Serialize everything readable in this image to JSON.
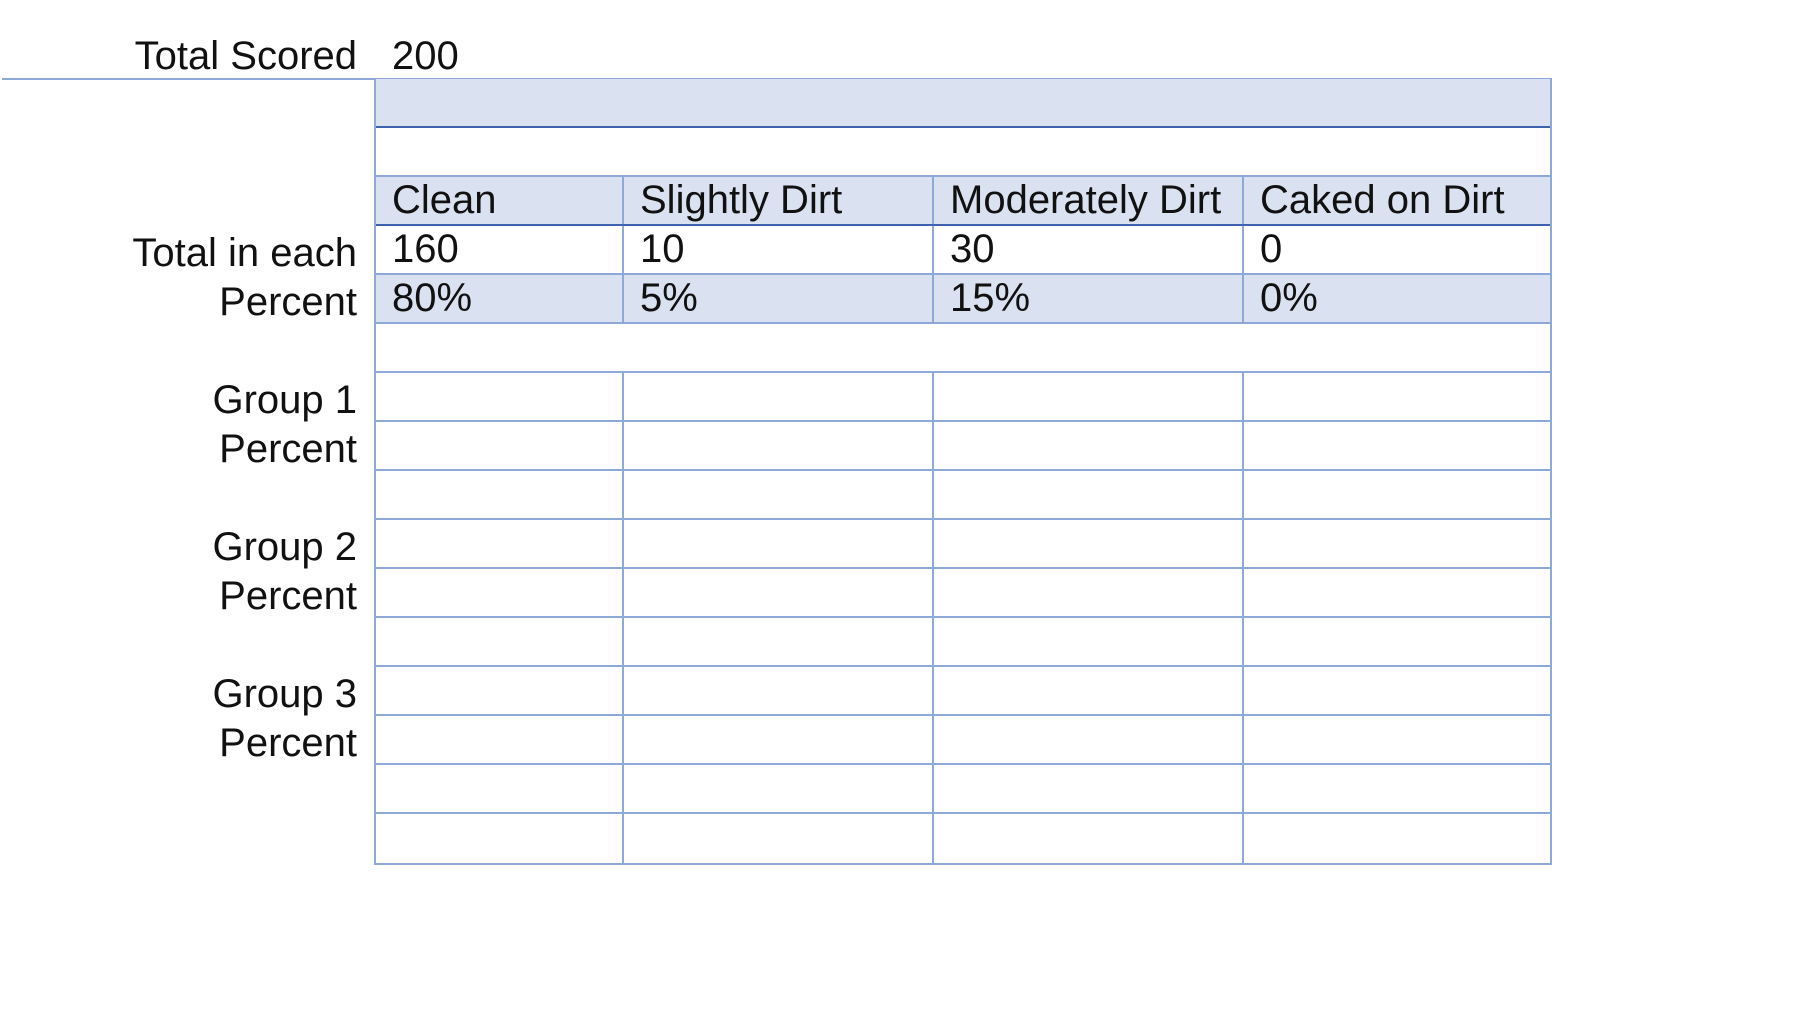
{
  "header": {
    "total_scored_label": "Total Scored",
    "total_scored_value": "200"
  },
  "table": {
    "columns": [
      "Clean",
      "Slightly Dirt",
      "Moderately Dirt",
      "Caked on Dirt"
    ],
    "totals_label": "Total in each",
    "totals": [
      "160",
      "10",
      "30",
      "0"
    ],
    "percent_label": "Percent",
    "percents": [
      "80%",
      "5%",
      "15%",
      "0%"
    ]
  },
  "groups": [
    {
      "label": "Group 1",
      "percent_label": "Percent"
    },
    {
      "label": "Group 2",
      "percent_label": "Percent"
    },
    {
      "label": "Group 3",
      "percent_label": "Percent"
    }
  ],
  "colors": {
    "grid_line": "#8ea9d8",
    "header_fill": "#dae1f1",
    "accent_line": "#3d63ae"
  }
}
